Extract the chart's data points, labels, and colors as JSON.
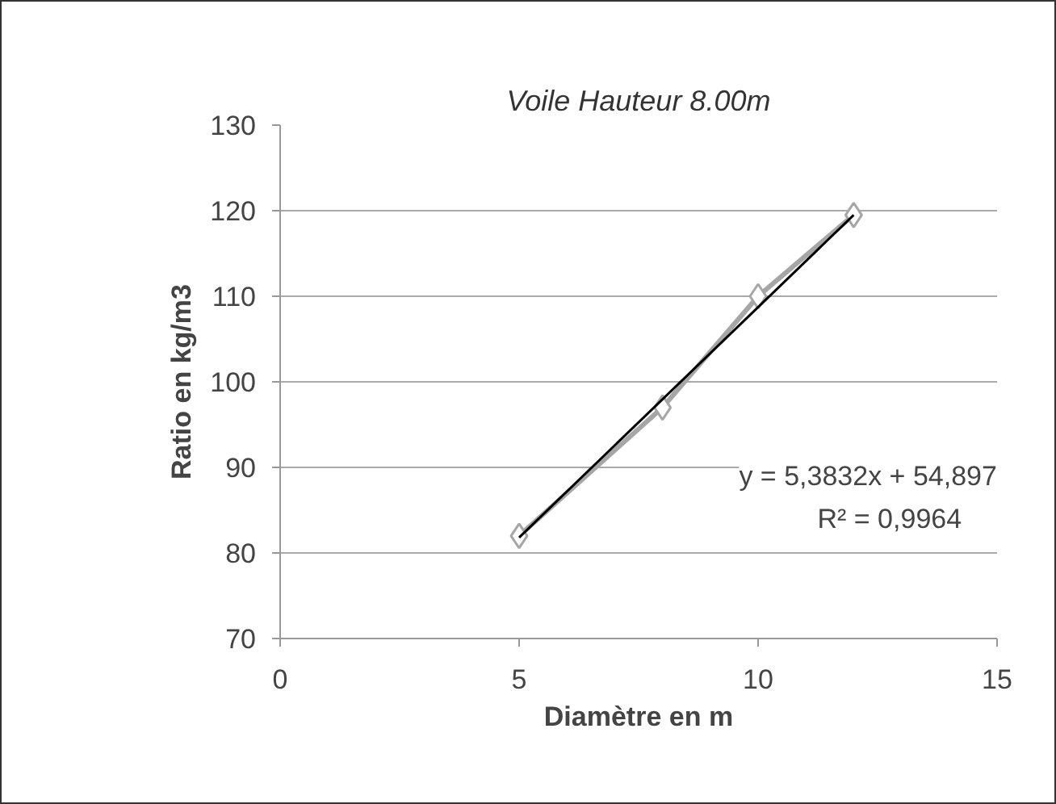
{
  "chart_data": {
    "type": "line",
    "title": "Voile Hauteur 8.00m",
    "xlabel": "Diamètre en m",
    "ylabel": "Ratio en kg/m3",
    "series": [
      {
        "color": "#a6a6a6",
        "x": [
          5,
          8,
          10,
          12
        ],
        "values": [
          82,
          97,
          110,
          119.5
        ],
        "marker": "diamond"
      },
      {
        "color": "#000000",
        "x": [
          5,
          12
        ],
        "values": [
          81.8,
          119.5
        ],
        "marker": "none"
      }
    ],
    "annotations": [
      "y = 5,3832x + 54,897",
      "R² = 0,9964"
    ],
    "xlim": [
      0,
      15
    ],
    "xticks": [
      0,
      5,
      10,
      15
    ],
    "ylim": [
      70,
      130
    ],
    "yticks": [
      70,
      80,
      90,
      100,
      110,
      120,
      130
    ],
    "grid": "y"
  }
}
